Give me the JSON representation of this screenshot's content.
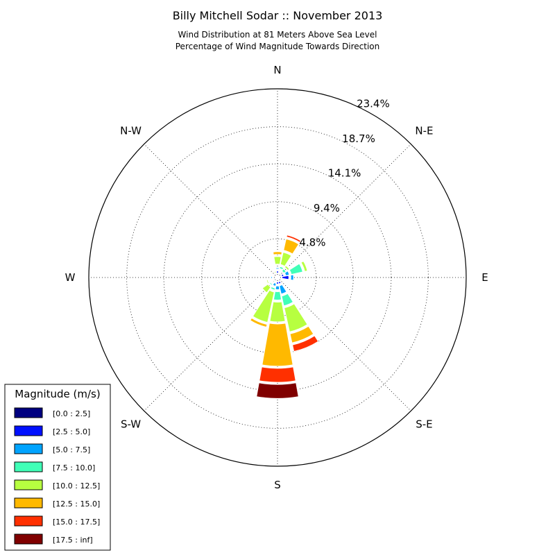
{
  "chart_data": {
    "type": "windrose",
    "title": "Billy Mitchell Sodar :: November 2013",
    "subtitle_line1": "Wind Distribution at 81 Meters Above Sea Level",
    "subtitle_line2": "Percentage of Wind Magnitude Towards Direction",
    "direction_labels": [
      "N",
      "N-E",
      "E",
      "S-E",
      "S",
      "S-W",
      "W",
      "N-W"
    ],
    "radial_ticks": [
      "4.8%",
      "9.4%",
      "14.1%",
      "18.7%",
      "23.4%"
    ],
    "radial_max": 23.4,
    "legend_title": "Magnitude (m/s)",
    "bins": [
      {
        "label": "[0.0 : 2.5]",
        "color": "#000080"
      },
      {
        "label": "[2.5 : 5.0]",
        "color": "#0010ff"
      },
      {
        "label": "[5.0 : 7.5]",
        "color": "#00a4ff"
      },
      {
        "label": "[7.5 : 10.0]",
        "color": "#40ffb7"
      },
      {
        "label": "[10.0 : 12.5]",
        "color": "#b7ff40"
      },
      {
        "label": "[12.5 : 15.0]",
        "color": "#ffb900"
      },
      {
        "label": "[15.0 : 17.5]",
        "color": "#ff3000"
      },
      {
        "label": "[17.5 : inf]",
        "color": "#800000"
      }
    ],
    "directions_deg": [
      0,
      22.5,
      45,
      67.5,
      90,
      112.5,
      135,
      157.5,
      180,
      202.5,
      225,
      247.5,
      270,
      292.5,
      315,
      337.5
    ],
    "cumulative_percent": [
      [
        0.3,
        0.8,
        1.2,
        1.4,
        2.6,
        3.2,
        3.4,
        3.5
      ],
      [
        0.3,
        0.6,
        0.9,
        1.4,
        3.2,
        4.9,
        5.4,
        5.5
      ],
      [
        0.3,
        0.5,
        0.7,
        1.3,
        1.8,
        2.0,
        2.1,
        2.1
      ],
      [
        0.3,
        0.8,
        1.5,
        3.2,
        3.8,
        3.8,
        3.8,
        3.8
      ],
      [
        0.3,
        1.4,
        2.0,
        2.3,
        2.5,
        2.5,
        2.5,
        2.5
      ],
      [
        0.3,
        0.5,
        0.8,
        1.1,
        1.4,
        1.4,
        1.4,
        1.4
      ],
      [
        0.3,
        0.5,
        0.7,
        0.8,
        1.0,
        1.0,
        1.0,
        1.0
      ],
      [
        0.3,
        0.8,
        2.1,
        3.6,
        6.9,
        8.3,
        9.4,
        9.5
      ],
      [
        0.3,
        0.8,
        1.5,
        2.8,
        5.5,
        11.0,
        13.0,
        15.0
      ],
      [
        0.2,
        0.5,
        1.1,
        1.6,
        5.7,
        6.3,
        6.35,
        6.4
      ],
      [
        0.2,
        0.5,
        0.8,
        1.2,
        2.3,
        2.3,
        2.3,
        2.3
      ],
      [
        0.2,
        0.4,
        0.7,
        1.0,
        1.4,
        1.4,
        1.4,
        1.4
      ],
      [
        0.2,
        0.4,
        0.8,
        0.8,
        0.8,
        0.8,
        0.8,
        0.8
      ],
      [
        0.1,
        0.2,
        0.3,
        0.4,
        0.5,
        0.5,
        0.55,
        0.6
      ],
      [
        0.1,
        0.2,
        0.3,
        0.4,
        0.5,
        0.6,
        0.9,
        1.2
      ],
      [
        0.1,
        0.2,
        0.3,
        0.4,
        0.8,
        0.8,
        0.8,
        0.9
      ]
    ]
  }
}
